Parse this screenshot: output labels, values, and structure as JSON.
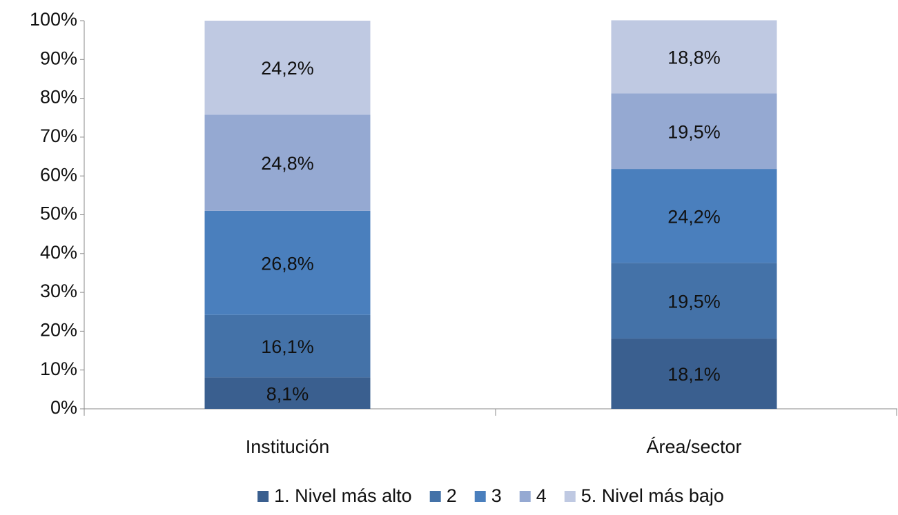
{
  "chart_data": {
    "type": "stacked_bar",
    "categories": [
      "Institución",
      "Área/sector"
    ],
    "series": [
      {
        "name": "1. Nivel más alto",
        "color": "#3a5f8f",
        "values": [
          8.1,
          18.1
        ],
        "value_labels": [
          "8,1%",
          "18,1%"
        ]
      },
      {
        "name": "2",
        "color": "#4472a8",
        "values": [
          16.1,
          19.5
        ],
        "value_labels": [
          "16,1%",
          "19,5%"
        ]
      },
      {
        "name": "3",
        "color": "#4a7fbd",
        "values": [
          26.8,
          24.2
        ],
        "value_labels": [
          "26,8%",
          "24,2%"
        ]
      },
      {
        "name": "4",
        "color": "#95a9d2",
        "values": [
          24.8,
          19.5
        ],
        "value_labels": [
          "24,8%",
          "19,5%"
        ]
      },
      {
        "name": "5. Nivel más bajo",
        "color": "#bfc9e2",
        "values": [
          24.2,
          18.8
        ],
        "value_labels": [
          "24,2%",
          "18,8%"
        ]
      }
    ],
    "ylim": [
      0,
      100
    ],
    "yticks": [
      {
        "value": 0,
        "label": "0%"
      },
      {
        "value": 10,
        "label": "10%"
      },
      {
        "value": 20,
        "label": "20%"
      },
      {
        "value": 30,
        "label": "30%"
      },
      {
        "value": 40,
        "label": "40%"
      },
      {
        "value": 50,
        "label": "50%"
      },
      {
        "value": 60,
        "label": "60%"
      },
      {
        "value": 70,
        "label": "70%"
      },
      {
        "value": 80,
        "label": "80%"
      },
      {
        "value": 90,
        "label": "90%"
      },
      {
        "value": 100,
        "label": "100%"
      }
    ],
    "legend": "bottom"
  }
}
